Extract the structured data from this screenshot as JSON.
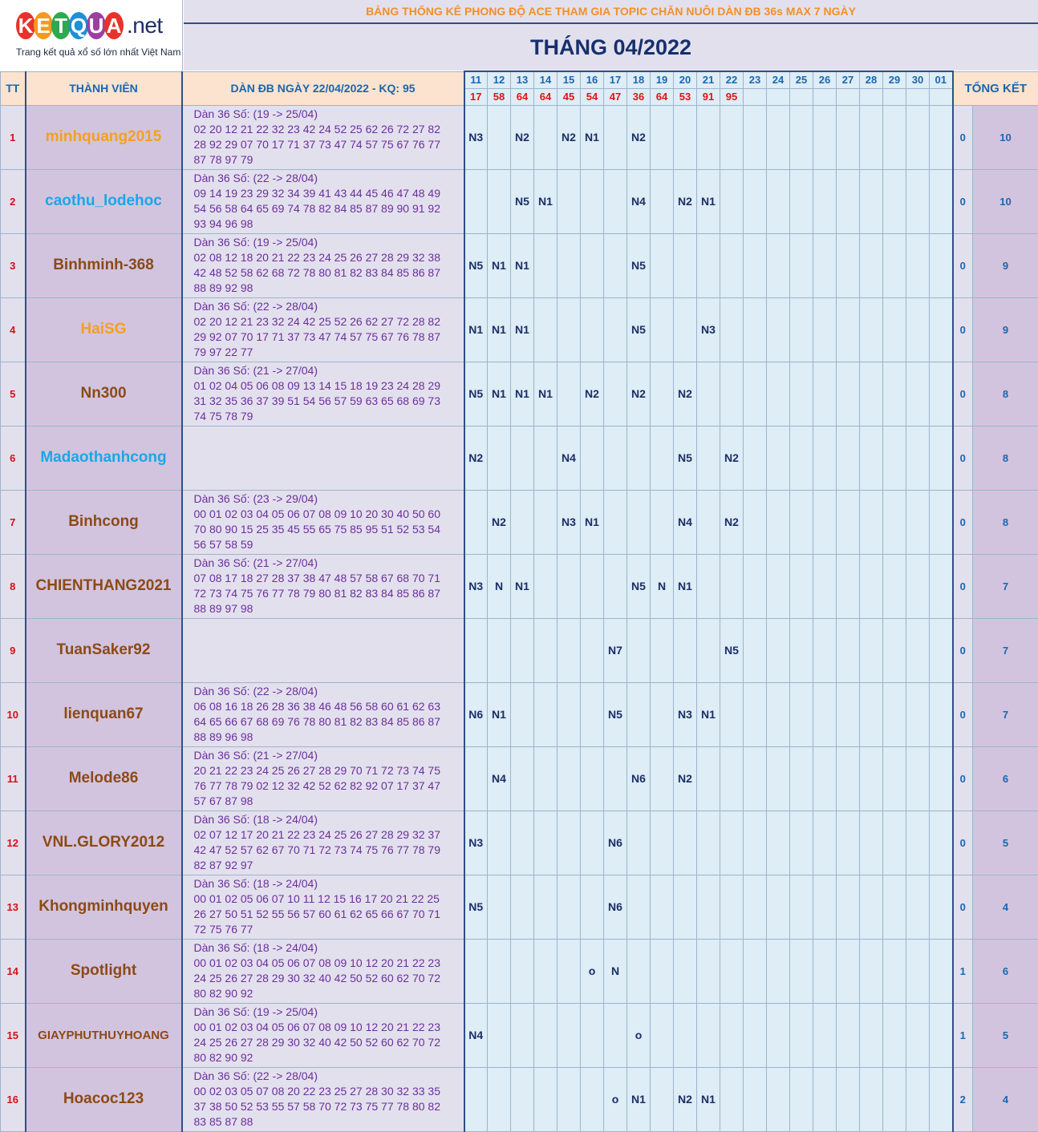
{
  "logo": {
    "letters": [
      "K",
      "E",
      "T",
      "Q",
      "U",
      "A"
    ],
    "letter_colors": [
      "#e8322b",
      "#f49a1d",
      "#2fa84f",
      "#1f8fd6",
      "#9c3fa2",
      "#e8322b"
    ],
    "suffix": ".net",
    "tagline": "Trang kết quả xổ số lớn nhất Việt Nam"
  },
  "title_top": "BẢNG THỐNG KÊ PHONG ĐỘ ACE THAM GIA TOPIC CHĂN NUÔI DÀN ĐB 36s MAX 7 NGÀY",
  "title_month": "THÁNG 04/2022",
  "headers": {
    "tt": "TT",
    "member": "THÀNH VIÊN",
    "dan": "DÀN ĐB NGÀY 22/04/2022 - KQ: 95",
    "summary": "TỔNG KẾT"
  },
  "days": [
    "11",
    "12",
    "13",
    "14",
    "15",
    "16",
    "17",
    "18",
    "19",
    "20",
    "21",
    "22",
    "23",
    "24",
    "25",
    "26",
    "27",
    "28",
    "29",
    "30",
    "01"
  ],
  "results": [
    "17",
    "58",
    "64",
    "64",
    "45",
    "54",
    "47",
    "36",
    "64",
    "53",
    "91",
    "95",
    "",
    "",
    "",
    "",
    "",
    "",
    "",
    "",
    ""
  ],
  "rows": [
    {
      "tt": "1",
      "name": "minhquang2015",
      "color": "#f4a020",
      "dan": [
        "Dàn 36 Số: (19 -> 25/04)",
        "02 20 12 21 22 32 23 42 24 52 25 62 26 72 27 82",
        "28 92 29 07 70 17 71 37 73 47 74 57 75 67 76 77",
        "87 78 97 79"
      ],
      "cells": [
        "N3",
        "",
        "N2",
        "",
        "N2",
        "N1",
        "",
        "N2",
        "",
        "",
        "",
        "",
        "",
        "",
        "",
        "",
        "",
        "",
        "",
        "",
        ""
      ],
      "s1": "0",
      "s2": "10"
    },
    {
      "tt": "2",
      "name": "caothu_lodehoc",
      "color": "#1aa7e8",
      "dan": [
        "Dàn 36 Số: (22 -> 28/04)",
        "09 14 19 23 29 32 34 39 41 43 44 45 46 47 48 49",
        "54 56 58 64 65 69 74 78 82 84 85 87 89 90 91 92",
        "93 94 96 98"
      ],
      "cells": [
        "",
        "",
        "N5",
        "N1",
        "",
        "",
        "",
        "N4",
        "",
        "N2",
        "N1",
        "",
        "",
        "",
        "",
        "",
        "",
        "",
        "",
        "",
        ""
      ],
      "s1": "0",
      "s2": "10"
    },
    {
      "tt": "3",
      "name": "Binhminh-368",
      "color": "#8c4a16",
      "dan": [
        "Dàn 36 Số: (19 -> 25/04)",
        "02 08 12 18 20 21 22 23 24 25 26 27 28 29 32 38",
        "42 48 52 58 62 68 72 78 80 81 82 83 84 85 86 87",
        "88 89 92 98"
      ],
      "cells": [
        "N5",
        "N1",
        "N1",
        "",
        "",
        "",
        "",
        "N5",
        "",
        "",
        "",
        "",
        "",
        "",
        "",
        "",
        "",
        "",
        "",
        "",
        ""
      ],
      "s1": "0",
      "s2": "9"
    },
    {
      "tt": "4",
      "name": "HaiSG",
      "color": "#f4a020",
      "dan": [
        "Dàn 36 Số: (22 -> 28/04)",
        "02 20 12 21 23 32 24 42 25 52 26 62 27 72 28 82",
        "29 92 07 70 17 71 37 73 47 74 57 75 67 76 78 87",
        "79 97 22 77"
      ],
      "cells": [
        "N1",
        "N1",
        "N1",
        "",
        "",
        "",
        "",
        "N5",
        "",
        "",
        "N3",
        "",
        "",
        "",
        "",
        "",
        "",
        "",
        "",
        "",
        ""
      ],
      "s1": "0",
      "s2": "9"
    },
    {
      "tt": "5",
      "name": "Nn300",
      "color": "#8c4a16",
      "dan": [
        "Dàn 36 Số: (21 -> 27/04)",
        "01 02 04 05 06 08 09 13 14 15 18 19 23 24 28 29",
        "31 32 35 36 37 39 51 54 56 57 59 63 65 68 69 73",
        "74 75 78 79"
      ],
      "cells": [
        "N5",
        "N1",
        "N1",
        "N1",
        "",
        "N2",
        "",
        "N2",
        "",
        "N2",
        "",
        "",
        "",
        "",
        "",
        "",
        "",
        "",
        "",
        "",
        ""
      ],
      "s1": "0",
      "s2": "8"
    },
    {
      "tt": "6",
      "name": "Madaothanhcong",
      "color": "#1aa7e8",
      "dan": [],
      "cells": [
        "N2",
        "",
        "",
        "",
        "N4",
        "",
        "",
        "",
        "",
        "N5",
        "",
        "N2",
        "",
        "",
        "",
        "",
        "",
        "",
        "",
        "",
        ""
      ],
      "s1": "0",
      "s2": "8"
    },
    {
      "tt": "7",
      "name": "Binhcong",
      "color": "#8c4a16",
      "dan": [
        "Dàn 36 Số: (23 -> 29/04)",
        "00 01 02 03 04 05 06 07 08 09 10 20 30 40 50 60",
        "70 80 90 15 25 35 45 55 65 75 85 95 51 52 53 54",
        "56 57 58 59"
      ],
      "cells": [
        "",
        "N2",
        "",
        "",
        "N3",
        "N1",
        "",
        "",
        "",
        "N4",
        "",
        "N2",
        "",
        "",
        "",
        "",
        "",
        "",
        "",
        "",
        ""
      ],
      "s1": "0",
      "s2": "8"
    },
    {
      "tt": "8",
      "name": "CHIENTHANG2021",
      "color": "#8c4a16",
      "dan": [
        "Dàn 36 Số: (21 -> 27/04)",
        "07 08 17 18 27 28 37 38 47 48 57 58 67 68 70 71",
        "72 73 74 75 76 77 78 79 80 81 82 83 84 85 86 87",
        "88 89 97 98"
      ],
      "cells": [
        "N3",
        "N",
        "N1",
        "",
        "",
        "",
        "",
        "N5",
        "N",
        "N1",
        "",
        "",
        "",
        "",
        "",
        "",
        "",
        "",
        "",
        "",
        ""
      ],
      "s1": "0",
      "s2": "7"
    },
    {
      "tt": "9",
      "name": "TuanSaker92",
      "color": "#8c4a16",
      "dan": [],
      "cells": [
        "",
        "",
        "",
        "",
        "",
        "",
        "N7",
        "",
        "",
        "",
        "",
        "N5",
        "",
        "",
        "",
        "",
        "",
        "",
        "",
        "",
        ""
      ],
      "s1": "0",
      "s2": "7"
    },
    {
      "tt": "10",
      "name": "lienquan67",
      "color": "#8c4a16",
      "dan": [
        "Dàn 36 Số: (22 -> 28/04)",
        "06 08 16 18 26 28 36 38 46 48 56 58 60 61 62 63",
        "64 65 66 67 68 69 76 78 80 81 82 83 84 85 86 87",
        "88 89 96 98"
      ],
      "cells": [
        "N6",
        "N1",
        "",
        "",
        "",
        "",
        "N5",
        "",
        "",
        "N3",
        "N1",
        "",
        "",
        "",
        "",
        "",
        "",
        "",
        "",
        "",
        ""
      ],
      "s1": "0",
      "s2": "7"
    },
    {
      "tt": "11",
      "name": "Melode86",
      "color": "#8c4a16",
      "dan": [
        "Dàn 36 Số: (21 -> 27/04)",
        "20 21 22 23 24 25 26 27 28 29 70 71 72 73 74 75",
        "76 77 78 79 02 12 32 42 52 62 82 92 07 17 37 47",
        "57 67 87 98"
      ],
      "cells": [
        "",
        "N4",
        "",
        "",
        "",
        "",
        "",
        "N6",
        "",
        "N2",
        "",
        "",
        "",
        "",
        "",
        "",
        "",
        "",
        "",
        "",
        ""
      ],
      "s1": "0",
      "s2": "6"
    },
    {
      "tt": "12",
      "name": "VNL.GLORY2012",
      "color": "#8c4a16",
      "dan": [
        "Dàn 36 Số: (18 -> 24/04)",
        "02 07 12 17 20 21 22 23 24 25 26 27 28 29 32 37",
        "42 47 52 57 62 67 70 71 72 73 74 75 76 77 78 79",
        "82 87 92 97"
      ],
      "cells": [
        "N3",
        "",
        "",
        "",
        "",
        "",
        "N6",
        "",
        "",
        "",
        "",
        "",
        "",
        "",
        "",
        "",
        "",
        "",
        "",
        "",
        ""
      ],
      "s1": "0",
      "s2": "5"
    },
    {
      "tt": "13",
      "name": "Khongminhquyen",
      "color": "#8c4a16",
      "dan": [
        "Dàn 36 Số: (18 -> 24/04)",
        "00 01 02 05 06 07 10 11 12 15 16 17 20 21 22 25",
        "26 27 50 51 52 55 56 57 60 61 62 65 66 67 70 71",
        "72 75 76 77"
      ],
      "cells": [
        "N5",
        "",
        "",
        "",
        "",
        "",
        "N6",
        "",
        "",
        "",
        "",
        "",
        "",
        "",
        "",
        "",
        "",
        "",
        "",
        "",
        ""
      ],
      "s1": "0",
      "s2": "4"
    },
    {
      "tt": "14",
      "name": "Spotlight",
      "color": "#8c4a16",
      "dan": [
        "Dàn 36 Số: (18 -> 24/04)",
        "00 01 02 03 04 05 06 07 08 09 10 12 20 21 22 23",
        "24 25 26 27 28 29 30 32 40 42 50 52 60 62 70 72",
        "80 82 90 92"
      ],
      "cells": [
        "",
        "",
        "",
        "",
        "",
        "o",
        "N",
        "",
        "",
        "",
        "",
        "",
        "",
        "",
        "",
        "",
        "",
        "",
        "",
        "",
        ""
      ],
      "s1": "1",
      "s2": "6"
    },
    {
      "tt": "15",
      "name": "GIAYPHUTHUYHOANG",
      "color": "#8c4a16",
      "dan": [
        "Dàn 36 Số: (19 -> 25/04)",
        "00 01 02 03 04 05 06 07 08 09 10 12 20 21 22 23",
        "24 25 26 27 28 29 30 32 40 42 50 52 60 62 70 72",
        "80 82 90 92"
      ],
      "cells": [
        "N4",
        "",
        "",
        "",
        "",
        "",
        "",
        "o",
        "",
        "",
        "",
        "",
        "",
        "",
        "",
        "",
        "",
        "",
        "",
        "",
        ""
      ],
      "s1": "1",
      "s2": "5"
    },
    {
      "tt": "16",
      "name": "Hoacoc123",
      "color": "#8c4a16",
      "dan": [
        "Dàn 36 Số: (22 -> 28/04)",
        "00 02 03 05 07 08 20 22 23 25 27 28 30 32 33 35",
        "37 38 50 52 53 55 57 58 70 72 73 75 77 78 80 82",
        "83 85 87 88"
      ],
      "cells": [
        "",
        "",
        "",
        "",
        "",
        "",
        "o",
        "N1",
        "",
        "N2",
        "N1",
        "",
        "",
        "",
        "",
        "",
        "",
        "",
        "",
        "",
        ""
      ],
      "s1": "2",
      "s2": "4"
    }
  ]
}
